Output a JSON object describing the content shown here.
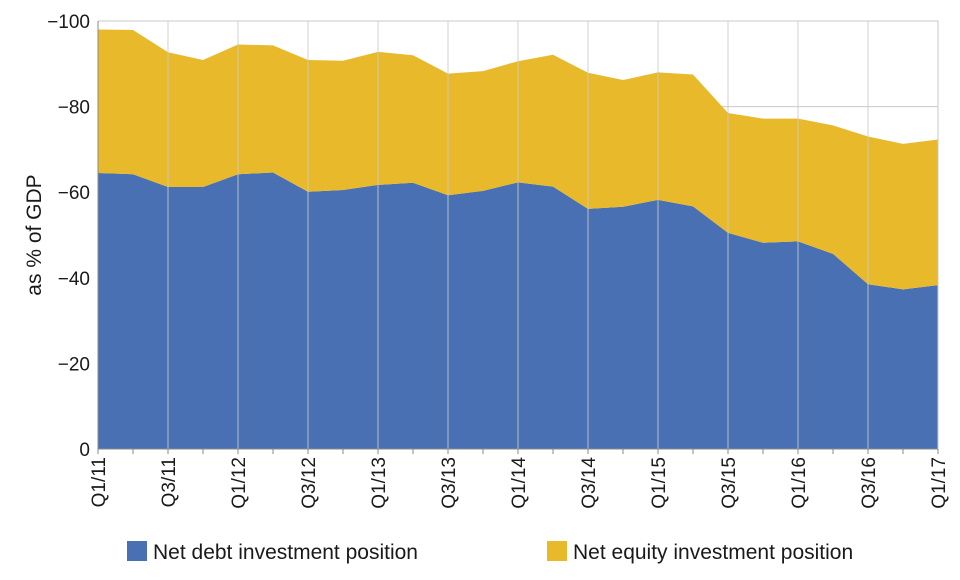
{
  "chart_data": {
    "type": "area",
    "stacked": true,
    "ylabel": "as % of GDP",
    "xlabel": "",
    "ylim": [
      0,
      -100
    ],
    "yticks": [
      0,
      -20,
      -40,
      -60,
      -80,
      -100
    ],
    "ytick_labels": [
      "0",
      "−20",
      "−40",
      "−60",
      "−80",
      "−100"
    ],
    "grid": true,
    "legend_position": "bottom",
    "categories": [
      "Q1/11",
      "Q2/11",
      "Q3/11",
      "Q4/11",
      "Q1/12",
      "Q2/12",
      "Q3/12",
      "Q4/12",
      "Q1/13",
      "Q2/13",
      "Q3/13",
      "Q4/13",
      "Q1/14",
      "Q2/14",
      "Q3/14",
      "Q4/14",
      "Q1/15",
      "Q2/15",
      "Q3/15",
      "Q4/15",
      "Q1/16",
      "Q2/16",
      "Q3/16",
      "Q4/16",
      "Q1/17"
    ],
    "x_tick_labels": [
      "Q1/11",
      "Q3/11",
      "Q1/12",
      "Q3/12",
      "Q1/13",
      "Q3/13",
      "Q1/14",
      "Q3/14",
      "Q1/15",
      "Q3/15",
      "Q1/16",
      "Q3/16",
      "Q1/17"
    ],
    "series": [
      {
        "name": "Net debt investment position",
        "color": "#4a70b4",
        "values": [
          -64.5,
          -64.2,
          -61.2,
          -61.2,
          -64.2,
          -64.6,
          -60.1,
          -60.5,
          -61.7,
          -62.2,
          -59.3,
          -60.3,
          -62.3,
          -61.3,
          -56.1,
          -56.6,
          -58.2,
          -56.7,
          -50.5,
          -48.2,
          -48.5,
          -45.6,
          -38.5,
          -37.3,
          -38.3
        ]
      },
      {
        "name": "Net equity investment position",
        "color": "#e8b92b",
        "values": [
          -33.5,
          -33.7,
          -31.5,
          -29.7,
          -30.3,
          -29.7,
          -30.8,
          -30.2,
          -31.1,
          -29.8,
          -28.4,
          -28.0,
          -28.3,
          -30.8,
          -31.8,
          -29.6,
          -29.8,
          -30.8,
          -28.0,
          -29.0,
          -28.7,
          -30.0,
          -34.5,
          -34.0,
          -34.0
        ]
      }
    ]
  }
}
